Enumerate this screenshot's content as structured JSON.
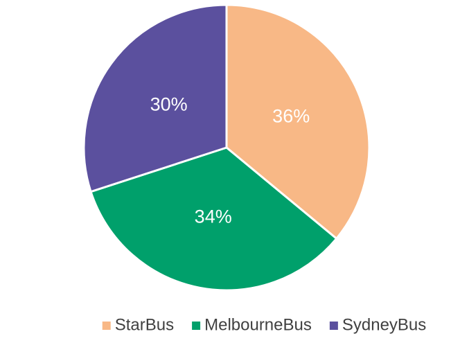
{
  "chart_data": {
    "type": "pie",
    "categories": [
      "StarBus",
      "MelbourneBus",
      "SydneyBus"
    ],
    "values": [
      36,
      34,
      30
    ],
    "value_labels": [
      "36%",
      "34%",
      "30%"
    ],
    "colors": [
      "#f8b886",
      "#00a06b",
      "#5b509e"
    ],
    "legend": "bottom"
  }
}
